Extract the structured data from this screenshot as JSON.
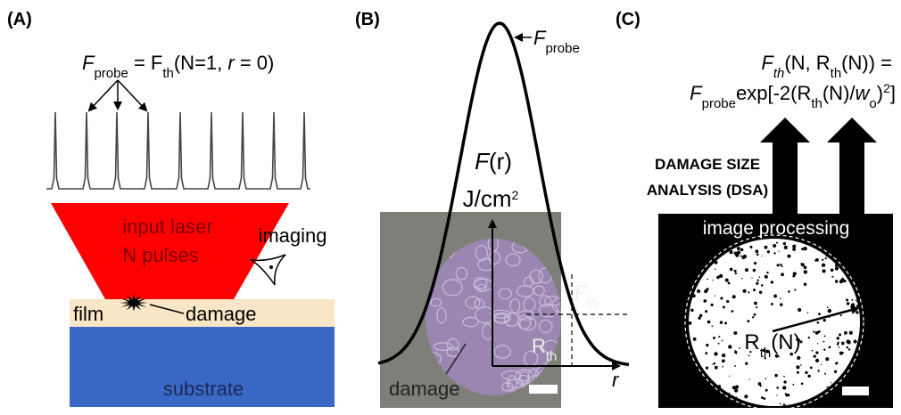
{
  "panel_a": {
    "label": "(A)",
    "probe_equation": [
      "F",
      "probe",
      " = F",
      "th",
      "(N=1, ",
      "r",
      " = 0)"
    ],
    "laser_text": [
      "input laser",
      "N pulses"
    ],
    "imaging": "imaging",
    "film": "film",
    "damage": "damage",
    "substrate": "substrate"
  },
  "panel_b": {
    "label": "(B)",
    "probe": [
      "F",
      "probe"
    ],
    "fluence": [
      "F",
      "(r)"
    ],
    "units": [
      "J/cm",
      "2"
    ],
    "threshold": [
      "F",
      "th"
    ],
    "radius": [
      "R",
      "th"
    ],
    "axis_r": "r",
    "damage": "damage"
  },
  "panel_c": {
    "label": "(C)",
    "equation_line1": [
      "F",
      "th",
      "(N, R",
      "th",
      "(N)) ="
    ],
    "equation_line2": [
      "F",
      "probe",
      "exp[-2(R",
      "th",
      "(N)/",
      "w",
      "o",
      ")",
      "2",
      "]"
    ],
    "method": [
      "DAMAGE SIZE",
      "ANALYSIS (DSA)"
    ],
    "processing": "image processing",
    "radius": [
      "R",
      "th",
      "(N)"
    ]
  }
}
